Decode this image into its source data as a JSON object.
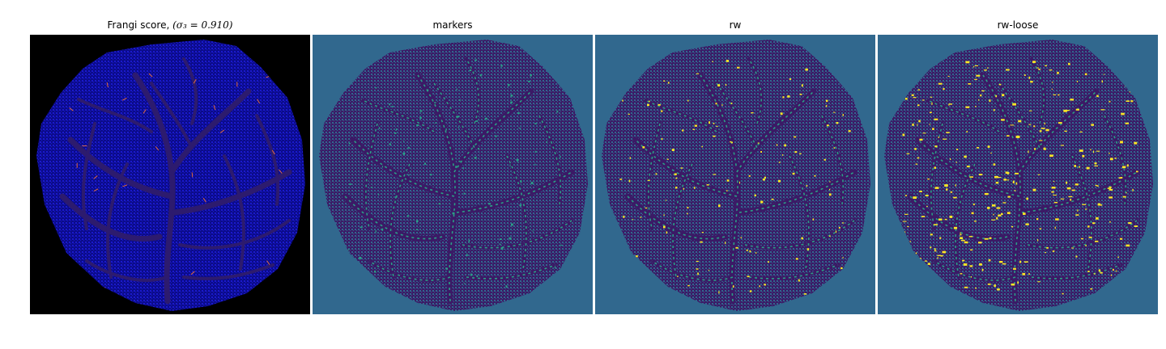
{
  "panels": [
    {
      "title": "Frangi score, ",
      "title_math": "(σ₃ = 0.910)",
      "background": "#000000",
      "disk_color": "#0b0b8a",
      "texture_color": "#1a1acc",
      "vessel_color": "#2d1b6e",
      "highlight_color": "#e0693a"
    },
    {
      "title": "markers",
      "background": "#31688e",
      "disk_color": "#3b1a66",
      "texture_color": "#31688e",
      "vessel_color": "#3b1a66",
      "highlight_color": "#2aa086"
    },
    {
      "title": "rw",
      "background": "#31688e",
      "disk_color": "#3b1a66",
      "texture_color": "#31688e",
      "vessel_color": "#3b1a66",
      "highlight_color": "#fde725",
      "secondary_color": "#2aa086"
    },
    {
      "title": "rw-loose",
      "background": "#31688e",
      "disk_color": "#3b1a66",
      "texture_color": "#31688e",
      "vessel_color": "#3b1a66",
      "highlight_color": "#fde725",
      "secondary_color": "#2aa086"
    }
  ]
}
